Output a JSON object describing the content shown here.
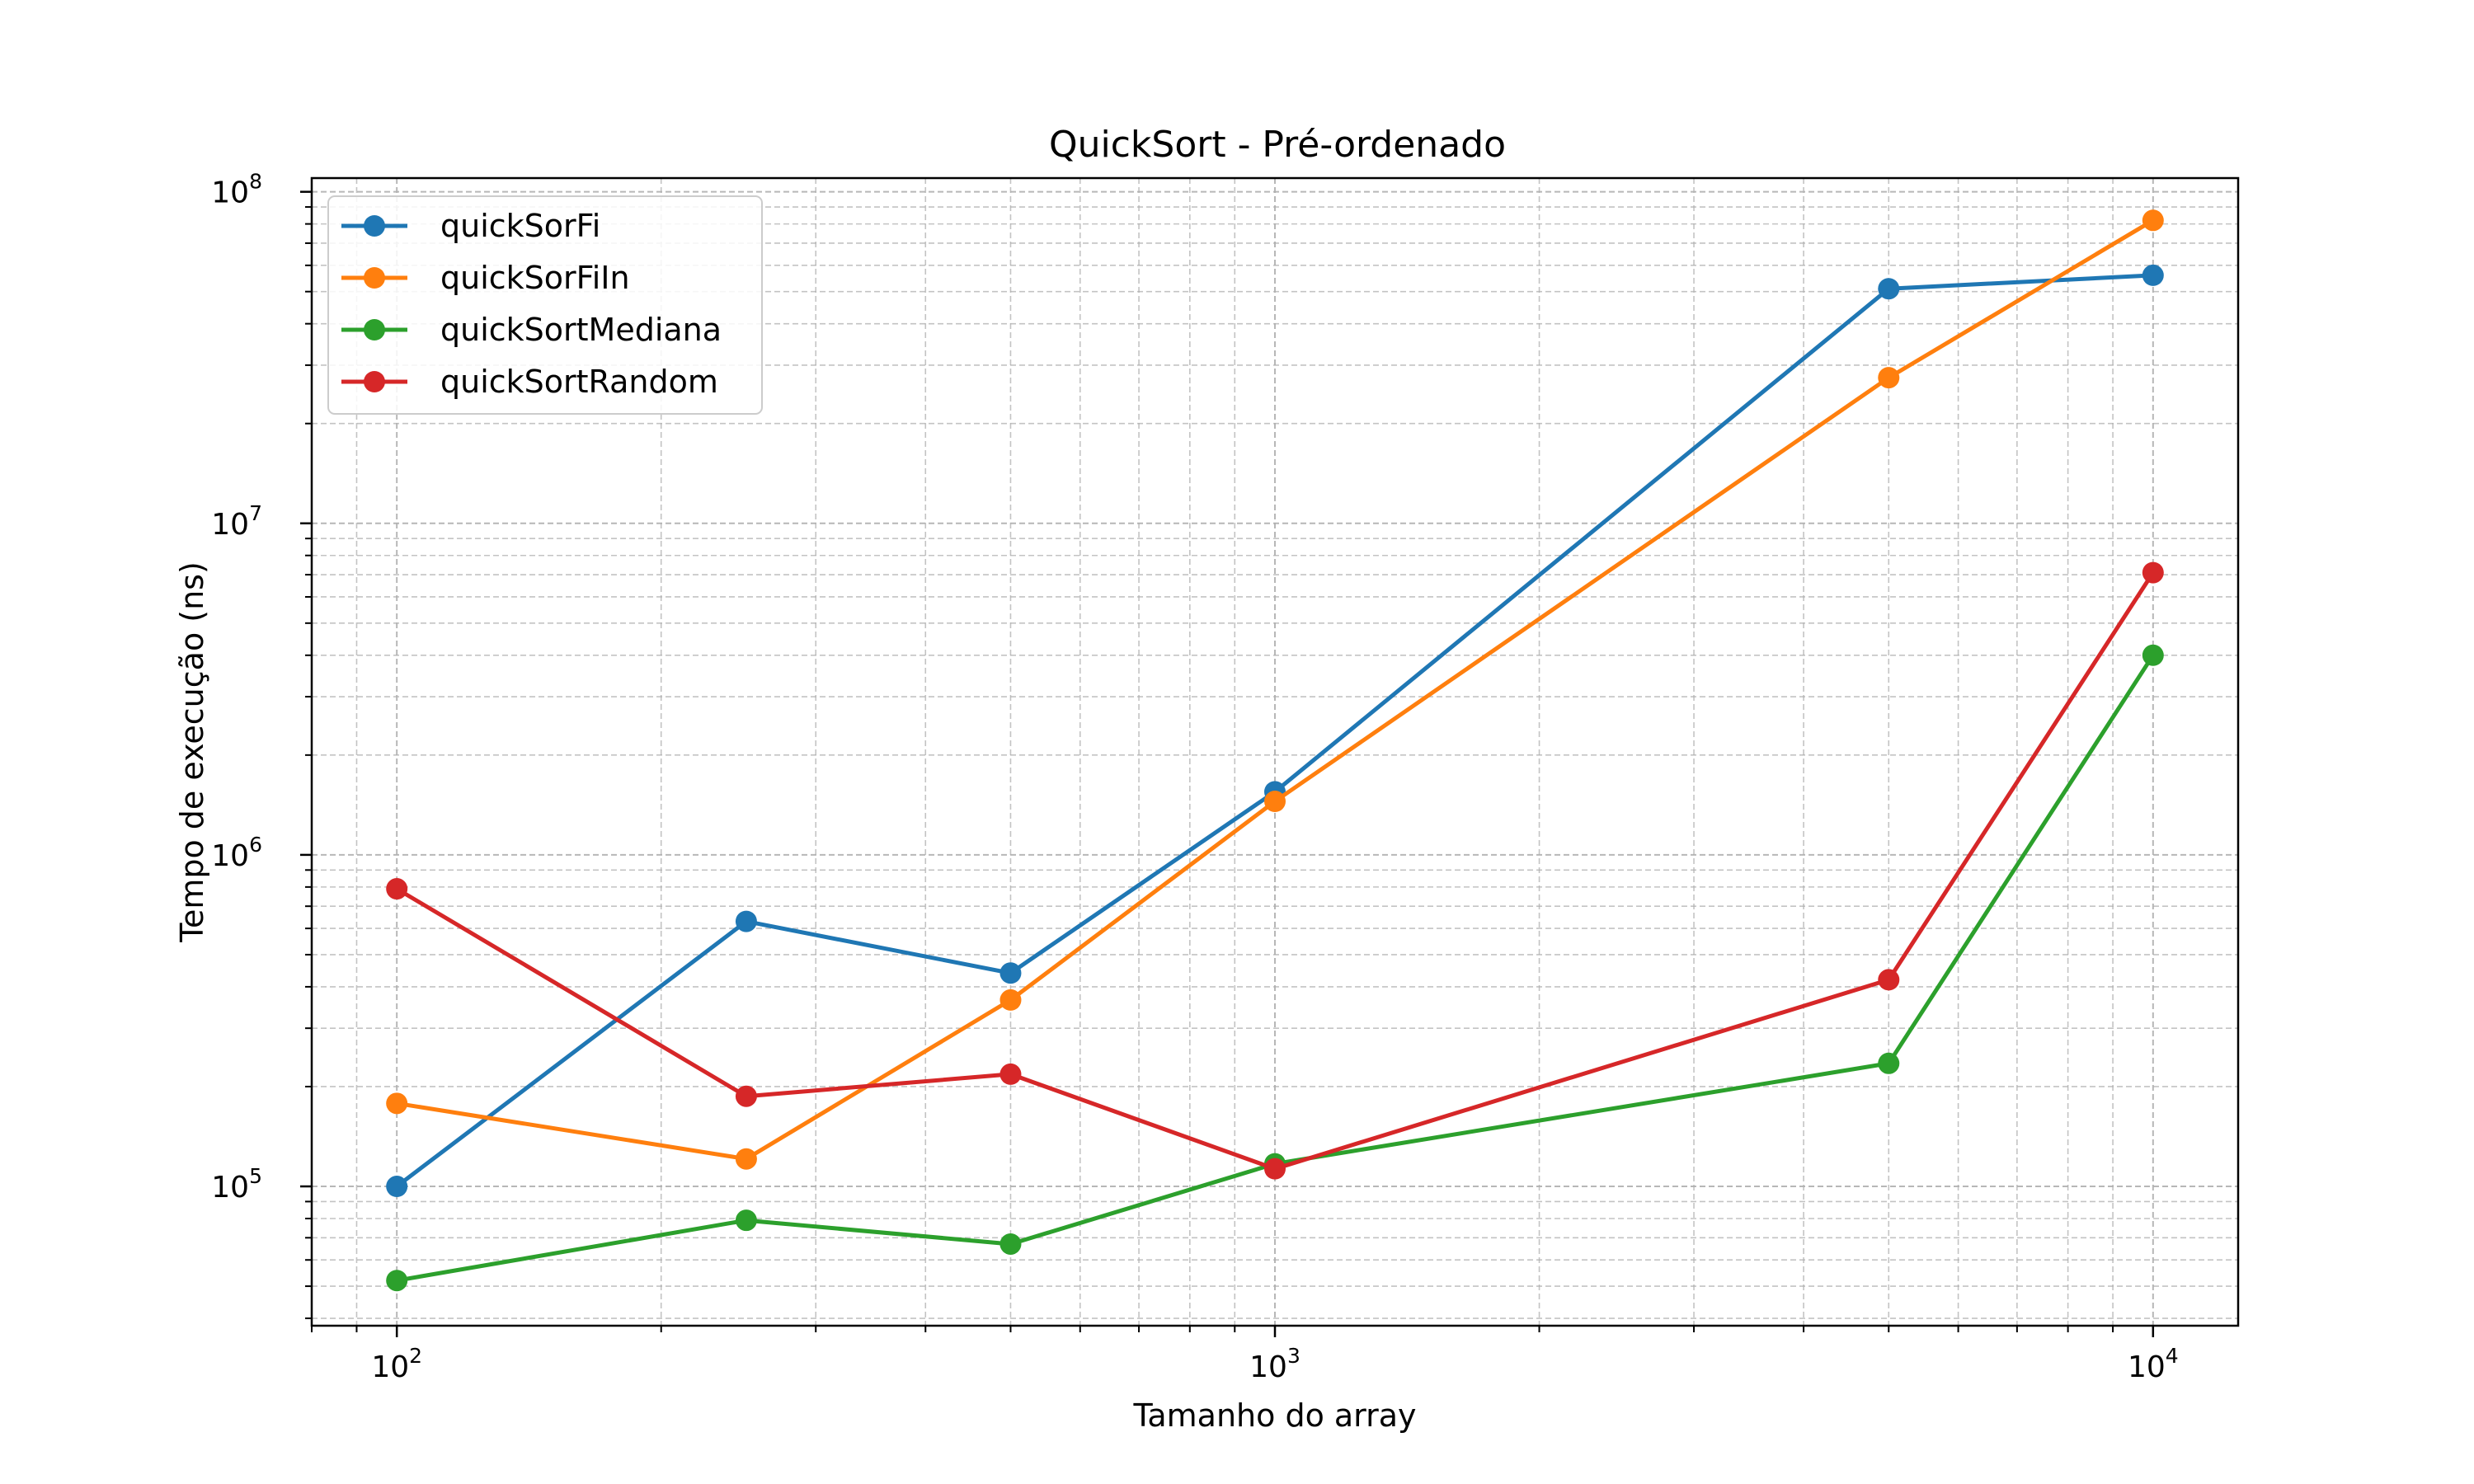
{
  "chart_data": {
    "type": "line",
    "title": "QuickSort - Pré-ordenado",
    "xlabel": "Tamanho do array",
    "ylabel": "Tempo de execução (ns)",
    "xscale": "log",
    "yscale": "log",
    "xlim": [
      80,
      12500
    ],
    "ylim": [
      38000,
      110000000
    ],
    "grid": true,
    "grid_minor": true,
    "legend_position": "upper-left",
    "x_ticks": [
      {
        "value": 100,
        "base": "10",
        "exp": "2"
      },
      {
        "value": 1000,
        "base": "10",
        "exp": "3"
      },
      {
        "value": 10000,
        "base": "10",
        "exp": "4"
      }
    ],
    "y_ticks": [
      {
        "value": 100000,
        "base": "10",
        "exp": "5"
      },
      {
        "value": 1000000,
        "base": "10",
        "exp": "6"
      },
      {
        "value": 10000000,
        "base": "10",
        "exp": "7"
      },
      {
        "value": 100000000,
        "base": "10",
        "exp": "8"
      }
    ],
    "x": [
      100,
      250,
      500,
      1000,
      5000,
      10000
    ],
    "series": [
      {
        "name": "quickSorFi",
        "color": "#1f77b4",
        "values": [
          100000,
          630000,
          440000,
          1550000,
          51000000,
          56000000
        ]
      },
      {
        "name": "quickSorFiIn",
        "color": "#ff7f0e",
        "values": [
          178000,
          121000,
          365000,
          1450000,
          27500000,
          82000000
        ]
      },
      {
        "name": "quickSortMediana",
        "color": "#2ca02c",
        "values": [
          52000,
          79000,
          67000,
          117000,
          235000,
          4000000
        ]
      },
      {
        "name": "quickSortRandom",
        "color": "#d62728",
        "values": [
          790000,
          187000,
          218000,
          113000,
          420000,
          7100000
        ]
      }
    ]
  }
}
